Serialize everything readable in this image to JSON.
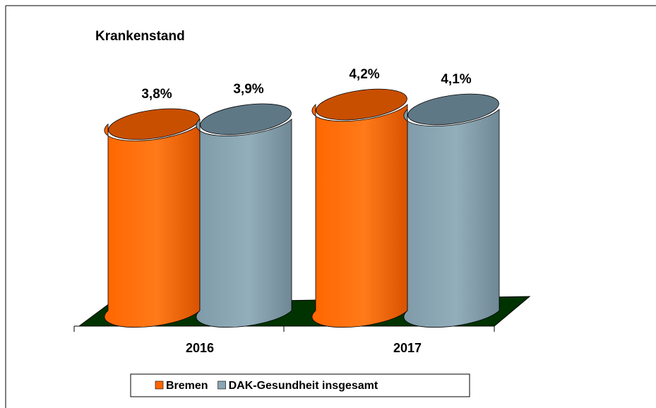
{
  "chart_data": {
    "type": "cylinder-bar",
    "title": "Krankenstand",
    "categories": [
      "2016",
      "2017"
    ],
    "series": [
      {
        "name": "Bremen",
        "color": "#ff6600",
        "values": [
          3.8,
          4.2
        ],
        "value_labels": [
          "3,8%",
          "4,2%"
        ]
      },
      {
        "name": "DAK-Gesundheit insgesamt",
        "color": "#8aa6b4",
        "values": [
          3.9,
          4.1
        ],
        "value_labels": [
          "3,9%",
          "4,1%"
        ]
      }
    ],
    "legend": "bottom"
  }
}
